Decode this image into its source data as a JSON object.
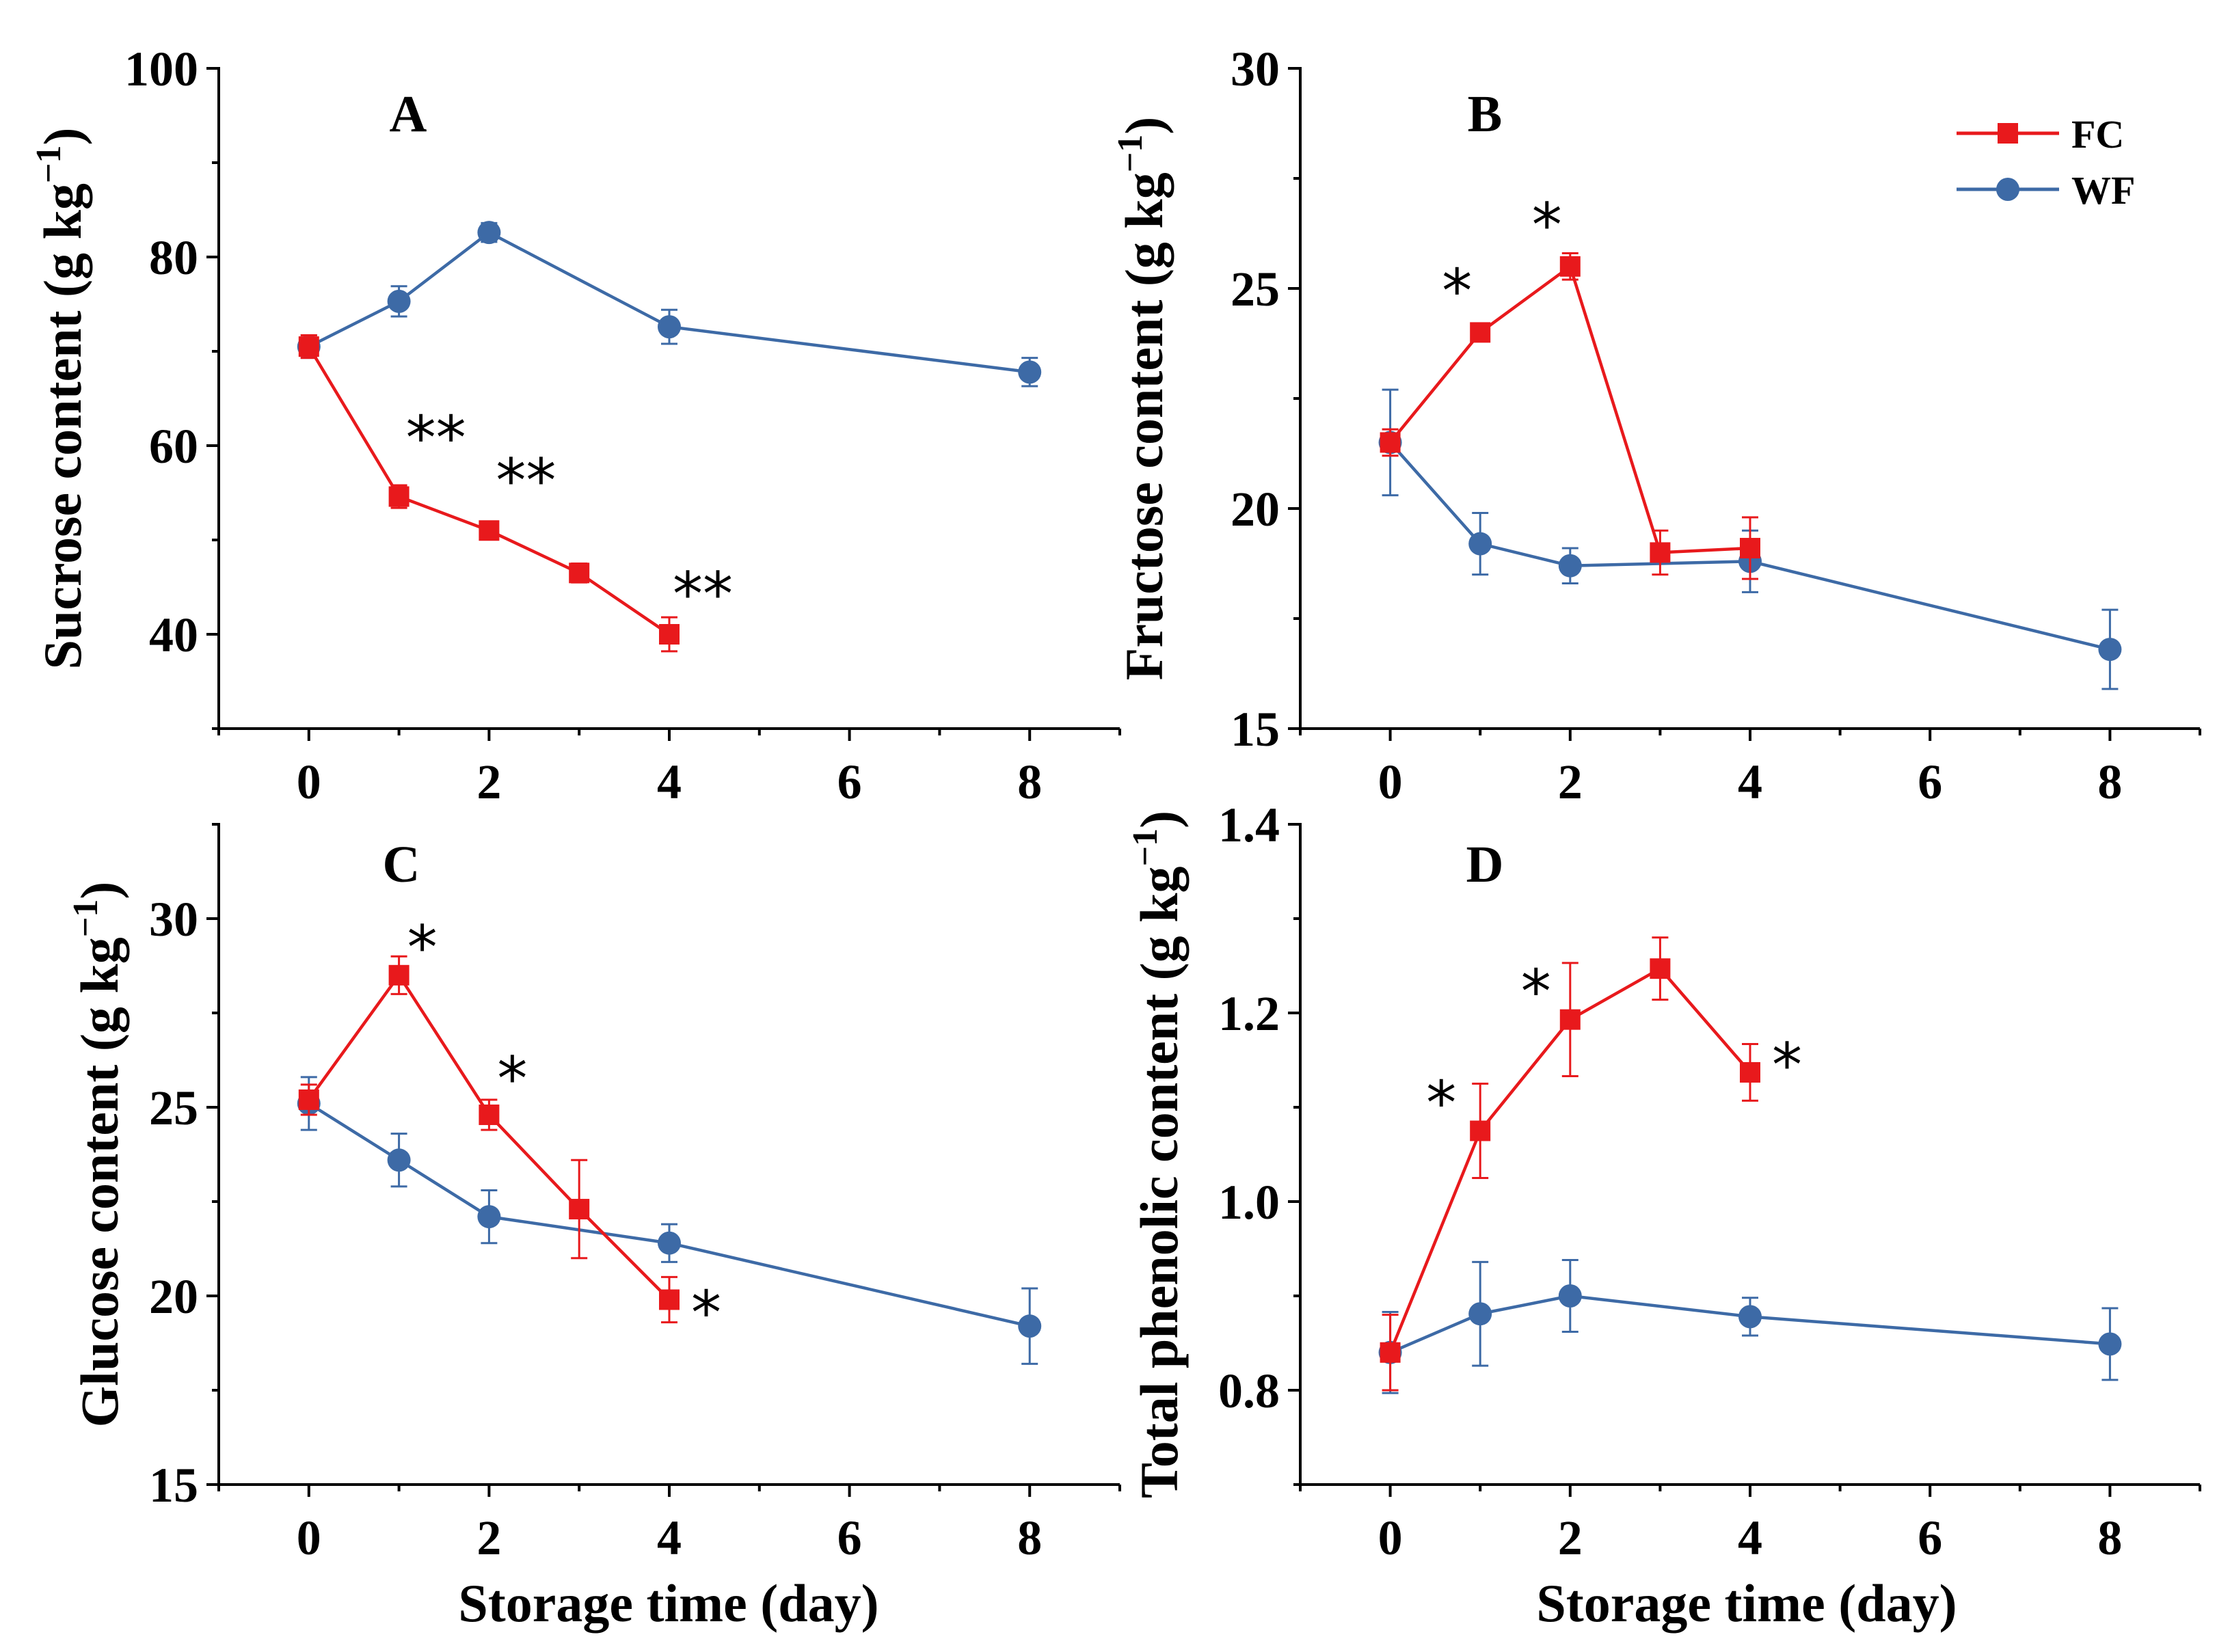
{
  "series_colors": {
    "FC": "#e8191c",
    "WF": "#3d6aa6"
  },
  "xlabel": "Storage time (day)",
  "legend": {
    "FC": "FC",
    "WF": "WF"
  },
  "chart_data": [
    {
      "panel": "A",
      "type": "line",
      "ylabel_main": "Sucrose content (g kg",
      "ylabel_sup": "−1",
      "ylabel_close": ")",
      "xlim": [
        -1,
        9
      ],
      "ylim": [
        30,
        100
      ],
      "xticks": [
        0,
        2,
        4,
        6,
        8
      ],
      "yticks": [
        40,
        60,
        80,
        100
      ],
      "series": [
        {
          "name": "FC",
          "x": [
            0,
            1,
            2,
            3,
            4
          ],
          "y": [
            70.5,
            54.6,
            51.0,
            46.5,
            40.0
          ],
          "err": [
            1.2,
            1.2,
            0.8,
            1.0,
            1.8
          ]
        },
        {
          "name": "WF",
          "x": [
            0,
            1,
            2,
            4,
            8
          ],
          "y": [
            70.5,
            75.3,
            82.6,
            72.6,
            67.8
          ],
          "err": [
            1.2,
            1.6,
            1.0,
            1.8,
            1.5
          ]
        }
      ],
      "significance": [
        {
          "x": 1,
          "y": 54.6,
          "label": "**"
        },
        {
          "x": 2,
          "y": 51.0,
          "label": "**"
        },
        {
          "x": 4,
          "y": 40.0,
          "label": "**"
        }
      ]
    },
    {
      "panel": "B",
      "type": "line",
      "ylabel_main": "Fructose content (g kg",
      "ylabel_sup": "−1",
      "ylabel_close": ")",
      "xlim": [
        -1,
        9
      ],
      "ylim": [
        15,
        30
      ],
      "xticks": [
        0,
        2,
        4,
        6,
        8
      ],
      "yticks": [
        15,
        20,
        25,
        30
      ],
      "series": [
        {
          "name": "FC",
          "x": [
            0,
            1,
            2,
            3,
            4
          ],
          "y": [
            21.5,
            24.0,
            25.5,
            19.0,
            19.1
          ],
          "err": [
            0.3,
            0.2,
            0.3,
            0.5,
            0.7
          ]
        },
        {
          "name": "WF",
          "x": [
            0,
            1,
            2,
            4,
            8
          ],
          "y": [
            21.5,
            19.2,
            18.7,
            18.8,
            16.8
          ],
          "err": [
            1.2,
            0.7,
            0.4,
            0.7,
            0.9
          ]
        }
      ],
      "significance": [
        {
          "x": 1,
          "y": 24.0,
          "label": "*"
        },
        {
          "x": 2,
          "y": 25.5,
          "label": "*"
        }
      ]
    },
    {
      "panel": "C",
      "type": "line",
      "ylabel_main": "Glucose content (g kg",
      "ylabel_sup": "−1",
      "ylabel_close": ")",
      "xlim": [
        -1,
        9
      ],
      "ylim": [
        15,
        32.5
      ],
      "xticks": [
        0,
        2,
        4,
        6,
        8
      ],
      "yticks": [
        15,
        20,
        25,
        30
      ],
      "series": [
        {
          "name": "FC",
          "x": [
            0,
            1,
            2,
            3,
            4
          ],
          "y": [
            25.2,
            28.5,
            24.8,
            22.3,
            19.9
          ],
          "err": [
            0.4,
            0.5,
            0.4,
            1.3,
            0.6
          ]
        },
        {
          "name": "WF",
          "x": [
            0,
            1,
            2,
            4,
            8
          ],
          "y": [
            25.1,
            23.6,
            22.1,
            21.4,
            19.2
          ],
          "err": [
            0.7,
            0.7,
            0.7,
            0.5,
            1.0
          ]
        }
      ],
      "significance": [
        {
          "x": 1,
          "y": 28.5,
          "label": "*"
        },
        {
          "x": 2,
          "y": 24.8,
          "label": "*"
        },
        {
          "x": 4,
          "y": 19.9,
          "label": "*"
        }
      ]
    },
    {
      "panel": "D",
      "type": "line",
      "ylabel_main": "Total phenolic content (g kg",
      "ylabel_sup": "−1",
      "ylabel_close": ")",
      "xlim": [
        -1,
        9
      ],
      "ylim": [
        0.7,
        1.4
      ],
      "xticks": [
        0,
        2,
        4,
        6,
        8
      ],
      "yticks": [
        0.8,
        1.0,
        1.2,
        1.4
      ],
      "ytick_labels": [
        "0.8",
        "1.0",
        "1.2",
        "1.4"
      ],
      "series": [
        {
          "name": "FC",
          "x": [
            0,
            1,
            2,
            3,
            4
          ],
          "y": [
            0.84,
            1.075,
            1.193,
            1.247,
            1.137
          ],
          "err": [
            0.04,
            0.05,
            0.06,
            0.033,
            0.03
          ]
        },
        {
          "name": "WF",
          "x": [
            0,
            1,
            2,
            4,
            8
          ],
          "y": [
            0.84,
            0.881,
            0.9,
            0.878,
            0.849
          ],
          "err": [
            0.043,
            0.055,
            0.038,
            0.02,
            0.038
          ]
        }
      ],
      "significance": [
        {
          "x": 1,
          "y": 1.075,
          "label": "*"
        },
        {
          "x": 2,
          "y": 1.193,
          "label": "*"
        },
        {
          "x": 4,
          "y": 1.137,
          "label": "*"
        }
      ]
    }
  ]
}
